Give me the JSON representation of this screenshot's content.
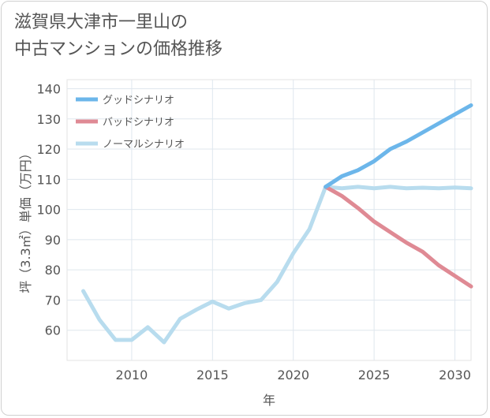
{
  "title_lines": [
    "滋賀県大津市一里山の",
    "中古マンションの価格推移"
  ],
  "chart_data": {
    "type": "line",
    "xlabel": "年",
    "ylabel": "坪（3.3㎡）単価（万円）",
    "xlim": [
      2006,
      2031
    ],
    "ylim": [
      50,
      143
    ],
    "xticks": [
      2010,
      2015,
      2020,
      2025,
      2030
    ],
    "yticks": [
      60,
      70,
      80,
      90,
      100,
      110,
      120,
      130,
      140
    ],
    "grid": true,
    "legend_position": "top-left",
    "series": [
      {
        "name": "グッドシナリオ",
        "color": "#6cb6ea",
        "x": [
          2022,
          2023,
          2024,
          2025,
          2026,
          2027,
          2028,
          2029,
          2030,
          2031
        ],
        "y": [
          107.5,
          111,
          113,
          116,
          120,
          122.5,
          125.5,
          128.5,
          131.5,
          134.5
        ]
      },
      {
        "name": "バッドシナリオ",
        "color": "#df8a94",
        "x": [
          2022,
          2023,
          2024,
          2025,
          2026,
          2027,
          2028,
          2029,
          2030,
          2031
        ],
        "y": [
          107.5,
          104.5,
          100.5,
          96,
          92.5,
          89,
          86,
          81.5,
          78,
          74.5
        ]
      },
      {
        "name": "ノーマルシナリオ",
        "color": "#b8dcee",
        "x": [
          2007,
          2008,
          2009,
          2010,
          2011,
          2012,
          2013,
          2014,
          2015,
          2016,
          2017,
          2018,
          2019,
          2020,
          2021,
          2022,
          2023,
          2024,
          2025,
          2026,
          2027,
          2028,
          2029,
          2030,
          2031
        ],
        "y": [
          73,
          63.5,
          56.8,
          56.8,
          61,
          56,
          63.8,
          66.8,
          69.5,
          67.2,
          69,
          70,
          76,
          85.5,
          93.5,
          107.5,
          107,
          107.5,
          107,
          107.5,
          107,
          107.2,
          107,
          107.3,
          107
        ]
      }
    ]
  }
}
